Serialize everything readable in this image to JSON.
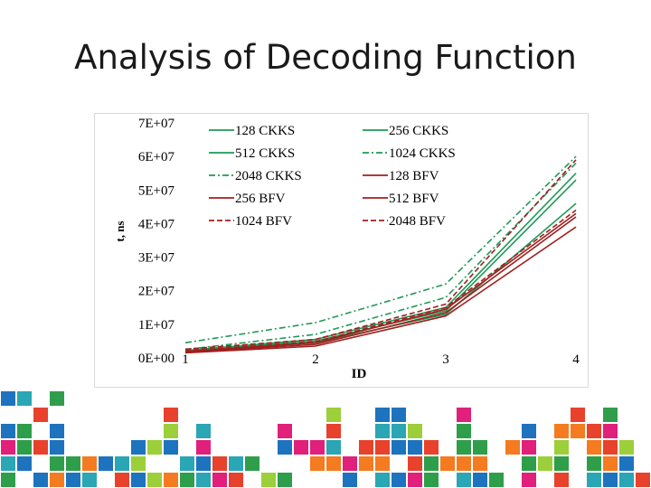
{
  "slide": {
    "title": "Analysis of Decoding Function"
  },
  "chart_data": {
    "type": "line",
    "title": "",
    "xlabel": "ID",
    "ylabel": "t, ns",
    "x": [
      1,
      2,
      3,
      4
    ],
    "xtick_labels": [
      "1",
      "2",
      "3",
      "4"
    ],
    "ylim": [
      0,
      70000000
    ],
    "ytick_labels": [
      "0E+00",
      "1E+07",
      "2E+07",
      "3E+07",
      "4E+07",
      "5E+07",
      "6E+07",
      "7E+07"
    ],
    "grid": false,
    "legend_position": "top",
    "series": [
      {
        "name": "128 CKKS",
        "color": "#1e9a55",
        "dash": "solid",
        "values": [
          1800000,
          4500000,
          13000000,
          46000000
        ]
      },
      {
        "name": "256 CKKS",
        "color": "#1e9a55",
        "dash": "solid",
        "values": [
          2000000,
          5000000,
          14000000,
          53000000
        ]
      },
      {
        "name": "512 CKKS",
        "color": "#1e9a55",
        "dash": "solid",
        "values": [
          2200000,
          5500000,
          15000000,
          55000000
        ]
      },
      {
        "name": "1024 CKKS",
        "color": "#1e9a55",
        "dash": "dashdot",
        "values": [
          2500000,
          7000000,
          18000000,
          58000000
        ]
      },
      {
        "name": "2048 CKKS",
        "color": "#1e9a55",
        "dash": "dashdot",
        "values": [
          4500000,
          10500000,
          22000000,
          60000000
        ]
      },
      {
        "name": "128 BFV",
        "color": "#a01f1f",
        "dash": "solid",
        "values": [
          1500000,
          3500000,
          12500000,
          39000000
        ]
      },
      {
        "name": "256 BFV",
        "color": "#a01f1f",
        "dash": "solid",
        "values": [
          1700000,
          4000000,
          13500000,
          42000000
        ]
      },
      {
        "name": "512 BFV",
        "color": "#a01f1f",
        "dash": "solid",
        "values": [
          1900000,
          4500000,
          14500000,
          43000000
        ]
      },
      {
        "name": "1024 BFV",
        "color": "#a01f1f",
        "dash": "dashed",
        "values": [
          2100000,
          4800000,
          15000000,
          44000000
        ]
      },
      {
        "name": "2048 BFV",
        "color": "#a01f1f",
        "dash": "dashed",
        "values": [
          2600000,
          5500000,
          16000000,
          59000000
        ]
      }
    ],
    "legend_order": [
      "128 CKKS",
      "256 CKKS",
      "512 CKKS",
      "1024 CKKS",
      "2048 CKKS",
      "128 BFV",
      "256 BFV",
      "512 BFV",
      "1024 BFV",
      "2048 BFV"
    ]
  },
  "decor": {
    "palette": [
      "#e0207a",
      "#2f9e4a",
      "#f47b20",
      "#1e73be",
      "#2aa6b4",
      "#9ccf3a",
      "#e8412c"
    ]
  }
}
